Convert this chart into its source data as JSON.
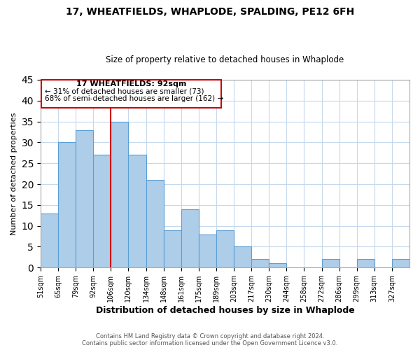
{
  "title": "17, WHEATFIELDS, WHAPLODE, SPALDING, PE12 6FH",
  "subtitle": "Size of property relative to detached houses in Whaplode",
  "xlabel": "Distribution of detached houses by size in Whaplode",
  "ylabel": "Number of detached properties",
  "bin_labels": [
    "51sqm",
    "65sqm",
    "79sqm",
    "92sqm",
    "106sqm",
    "120sqm",
    "134sqm",
    "148sqm",
    "161sqm",
    "175sqm",
    "189sqm",
    "203sqm",
    "217sqm",
    "230sqm",
    "244sqm",
    "258sqm",
    "272sqm",
    "286sqm",
    "299sqm",
    "313sqm",
    "327sqm"
  ],
  "counts": [
    13,
    30,
    33,
    27,
    35,
    27,
    21,
    9,
    14,
    8,
    9,
    5,
    2,
    1,
    0,
    0,
    2,
    0,
    2,
    0,
    2
  ],
  "bar_color": "#aecde8",
  "bar_edge_color": "#5a9fd4",
  "marker_bin_index": 3,
  "marker_label": "17 WHEATFIELDS: 92sqm",
  "annotation_line1": "← 31% of detached houses are smaller (73)",
  "annotation_line2": "68% of semi-detached houses are larger (162) →",
  "marker_color": "#cc0000",
  "annotation_box_edge": "#cc0000",
  "ylim": [
    0,
    45
  ],
  "yticks": [
    0,
    5,
    10,
    15,
    20,
    25,
    30,
    35,
    40,
    45
  ],
  "footer1": "Contains HM Land Registry data © Crown copyright and database right 2024.",
  "footer2": "Contains public sector information licensed under the Open Government Licence v3.0.",
  "background_color": "#ffffff",
  "grid_color": "#c5d8ec"
}
